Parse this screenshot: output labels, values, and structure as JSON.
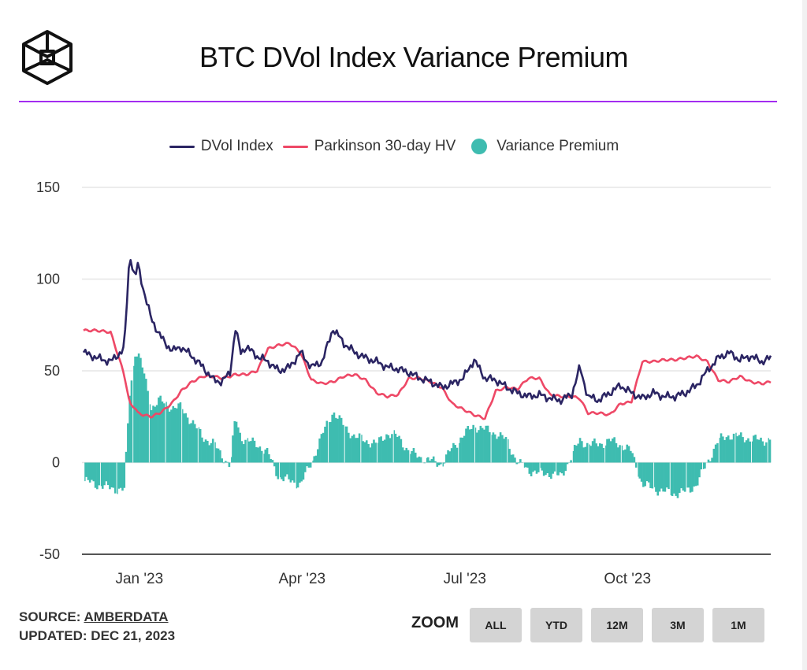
{
  "header": {
    "logo_icon": "hexagon-cube-logo-icon",
    "title": "BTC DVol Index Variance Premium",
    "rule_color": "#a32cf0"
  },
  "legend": {
    "items": [
      {
        "label": "DVol Index",
        "type": "line",
        "color": "#2b2563"
      },
      {
        "label": "Parkinson 30-day HV",
        "type": "line",
        "color": "#ee4866"
      },
      {
        "label": "Variance Premium",
        "type": "dot",
        "color": "#3ebcb0"
      }
    ]
  },
  "footer": {
    "source_label": "SOURCE:",
    "source_link": "AMBERDATA",
    "updated": "UPDATED: DEC 21, 2023",
    "zoom_label": "ZOOM",
    "zoom_buttons": [
      "ALL",
      "YTD",
      "12M",
      "3M",
      "1M"
    ]
  },
  "chart_data": {
    "type": "line",
    "title": "BTC DVol Index Variance Premium",
    "xlabel": "",
    "ylabel": "",
    "ylim": [
      -50,
      150
    ],
    "yticks": [
      150,
      100,
      50,
      0,
      -50
    ],
    "x_range": [
      "2022-12-01",
      "2023-12-21"
    ],
    "x_tick_labels": [
      "Jan '23",
      "Apr '23",
      "Jul '23",
      "Oct '23"
    ],
    "x_tick_months_from_start": [
      1,
      4,
      7,
      10
    ],
    "grid": true,
    "legend_position": "top-center",
    "x_months": [
      0,
      0.25,
      0.5,
      0.75,
      0.85,
      0.95,
      1.0,
      1.1,
      1.25,
      1.4,
      1.5,
      1.65,
      1.8,
      2.0,
      2.2,
      2.4,
      2.55,
      2.7,
      2.8,
      2.9,
      3.0,
      3.2,
      3.4,
      3.6,
      3.8,
      4.0,
      4.2,
      4.4,
      4.6,
      4.8,
      5.0,
      5.2,
      5.4,
      5.6,
      5.8,
      6.0,
      6.2,
      6.4,
      6.6,
      6.8,
      7.0,
      7.2,
      7.4,
      7.6,
      7.8,
      8.0,
      8.2,
      8.4,
      8.6,
      8.8,
      9.0,
      9.15,
      9.3,
      9.5,
      9.7,
      9.9,
      10.1,
      10.3,
      10.5,
      10.7,
      10.9,
      11.1,
      11.3,
      11.5,
      11.7,
      11.9,
      12.1,
      12.3,
      12.5,
      12.67
    ],
    "series": [
      {
        "name": "DVol Index",
        "values": [
          60,
          57,
          55,
          62,
          114,
          100,
          108,
          95,
          78,
          70,
          65,
          61,
          63,
          58,
          52,
          45,
          44,
          49,
          73,
          60,
          63,
          58,
          55,
          50,
          52,
          60,
          52,
          55,
          73,
          65,
          60,
          57,
          55,
          52,
          51,
          49,
          46,
          44,
          41,
          43,
          46,
          56,
          46,
          45,
          41,
          38,
          36,
          37,
          35,
          34,
          37,
          52,
          36,
          34,
          38,
          42,
          38,
          35,
          38,
          36,
          36,
          38,
          42,
          50,
          57,
          60,
          56,
          58,
          55,
          57
        ]
      },
      {
        "name": "Parkinson 30-day HV",
        "values": [
          72,
          72,
          71,
          48,
          32,
          30,
          27,
          26,
          25,
          27,
          29,
          33,
          39,
          44,
          47,
          47,
          46,
          47,
          48,
          48,
          48,
          50,
          62,
          64,
          65,
          60,
          45,
          43,
          44,
          47,
          48,
          45,
          38,
          36,
          37,
          46,
          46,
          44,
          41,
          32,
          29,
          26,
          24,
          39,
          41,
          40,
          46,
          46,
          37,
          36,
          36,
          35,
          27,
          27,
          26,
          32,
          33,
          55,
          55,
          56,
          56,
          57,
          58,
          55,
          45,
          44,
          47,
          44,
          43,
          44
        ]
      },
      {
        "name": "Variance Premium",
        "type": "bar",
        "values": [
          -10,
          -12,
          -14,
          -15,
          38,
          60,
          60,
          50,
          30,
          34,
          32,
          30,
          30,
          22,
          14,
          10,
          4,
          -2,
          25,
          14,
          12,
          10,
          5,
          -8,
          -10,
          -12,
          0,
          15,
          28,
          20,
          14,
          12,
          10,
          16,
          14,
          6,
          3,
          1,
          -1,
          8,
          15,
          20,
          18,
          16,
          12,
          0,
          -4,
          -6,
          -6,
          -8,
          4,
          12,
          10,
          10,
          12,
          10,
          6,
          -12,
          -14,
          -16,
          -17,
          -16,
          -12,
          0,
          12,
          15,
          14,
          13,
          12,
          13
        ]
      }
    ]
  }
}
